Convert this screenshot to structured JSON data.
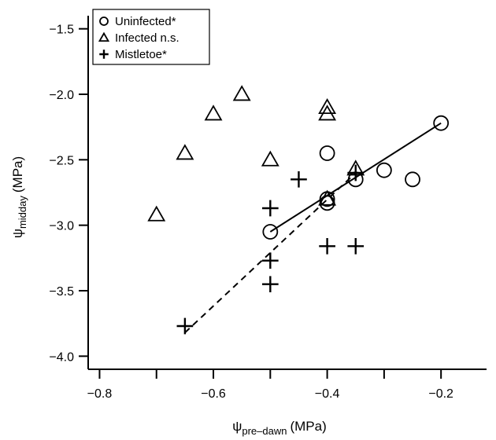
{
  "chart_data": {
    "type": "scatter",
    "xlabel": {
      "symbol": "ψ",
      "subscript": "pre–dawn",
      "unit": "(MPa)"
    },
    "ylabel": {
      "symbol": "ψ",
      "subscript": "midday",
      "unit": "(MPa)"
    },
    "xlim": [
      -0.82,
      -0.12
    ],
    "ylim": [
      -4.1,
      -1.4
    ],
    "xticks": [
      -0.8,
      -0.7,
      -0.6,
      -0.5,
      -0.4,
      -0.3,
      -0.2
    ],
    "xtick_labels": [
      "−0.8",
      "",
      "−0.6",
      "",
      "−0.4",
      "",
      "−0.2"
    ],
    "yticks": [
      -1.5,
      -2.0,
      -2.5,
      -3.0,
      -3.5,
      -4.0
    ],
    "ytick_labels": [
      "−1.5",
      "−2.0",
      "−2.5",
      "−3.0",
      "−3.5",
      "−4.0"
    ],
    "legend_position": "top-left",
    "grid": false,
    "series": [
      {
        "name": "Uninfected*",
        "marker": "circle",
        "x": [
          -0.5,
          -0.4,
          -0.4,
          -0.4,
          -0.35,
          -0.3,
          -0.25,
          -0.2
        ],
        "y": [
          -3.05,
          -2.45,
          -2.8,
          -2.83,
          -2.65,
          -2.58,
          -2.65,
          -2.22
        ]
      },
      {
        "name": "Infected n.s.",
        "marker": "triangle",
        "x": [
          -0.7,
          -0.65,
          -0.6,
          -0.55,
          -0.5,
          -0.4,
          -0.4,
          -0.4,
          -0.35
        ],
        "y": [
          -2.92,
          -2.45,
          -2.15,
          -2.0,
          -2.5,
          -2.1,
          -2.15,
          -2.8,
          -2.57
        ]
      },
      {
        "name": "Mistletoe*",
        "marker": "plus",
        "x": [
          -0.65,
          -0.5,
          -0.5,
          -0.5,
          -0.45,
          -0.4,
          -0.35,
          -0.35
        ],
        "y": [
          -3.77,
          -3.45,
          -3.27,
          -2.87,
          -2.65,
          -3.16,
          -3.16,
          -2.6
        ]
      }
    ],
    "fit_lines": [
      {
        "style": "solid",
        "x": [
          -0.5,
          -0.2
        ],
        "y": [
          -3.05,
          -2.22
        ]
      },
      {
        "style": "dashed",
        "x": [
          -0.65,
          -0.35
        ],
        "y": [
          -3.82,
          -2.6
        ]
      }
    ]
  }
}
